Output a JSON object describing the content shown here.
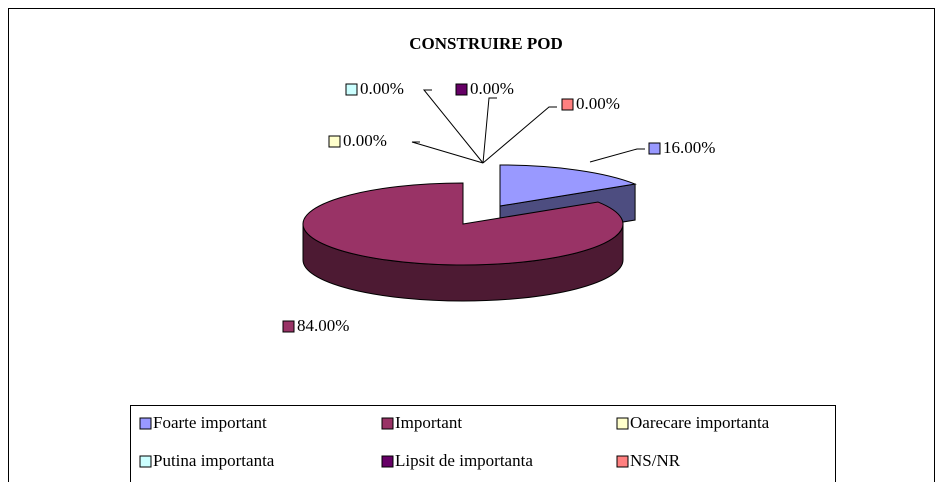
{
  "chart_data": {
    "type": "pie3d",
    "title": "CONSTRUIRE  POD",
    "categories": [
      "Foarte important",
      "Important",
      "Oarecare importanta",
      "Putina importanta",
      "Lipsit de importanta",
      "NS/NR"
    ],
    "values": [
      16,
      84,
      0,
      0,
      0,
      0
    ],
    "value_labels": [
      "16.00%",
      "84.00%",
      "0.00%",
      "0.00%",
      "0.00%",
      "0.00%"
    ],
    "colors": [
      "#9999ff",
      "#993366",
      "#ffffcc",
      "#ccffff",
      "#660066",
      "#ff8080"
    ],
    "legend": "bottom"
  }
}
